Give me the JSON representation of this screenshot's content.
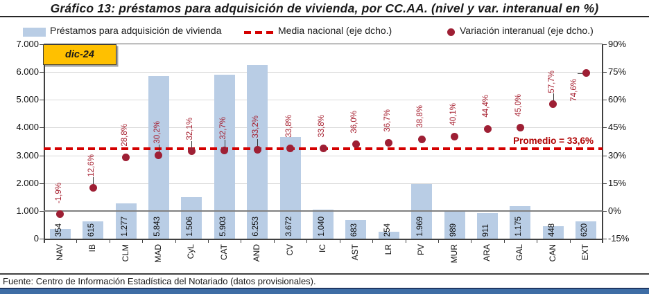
{
  "title": "Gráfico 13: préstamos para adquisición de vivienda, por CC.AA. (nivel y var. interanual en %)",
  "legend": {
    "bar_label": "Préstamos para adquisición de vivienda",
    "line_label": "Media nacional (eje dcho.)",
    "dot_label": "Variación interanual (eje dcho.)"
  },
  "footer": {
    "source": "Fuente: Centro de Información Estadística del Notariado (datos provisionales)."
  },
  "chart_data": {
    "type": "bar",
    "period_label": "dic-24",
    "categories": [
      "NAV",
      "IB",
      "CLM",
      "MAD",
      "CyL",
      "CAT",
      "AND",
      "CV",
      "IC",
      "AST",
      "LR",
      "PV",
      "MUR",
      "ARA",
      "GAL",
      "CAN",
      "EXT"
    ],
    "series": [
      {
        "name": "Préstamos para adquisición de vivienda",
        "type": "bar",
        "axis": "left",
        "values": [
          354,
          615,
          1277,
          5843,
          1506,
          5903,
          6253,
          3672,
          1040,
          683,
          254,
          1969,
          989,
          911,
          1175,
          448,
          620
        ],
        "value_labels": [
          "354",
          "615",
          "1.277",
          "5.843",
          "1.506",
          "5.903",
          "6.253",
          "3.672",
          "1.040",
          "683",
          "254",
          "1.969",
          "989",
          "911",
          "1.175",
          "448",
          "620"
        ]
      },
      {
        "name": "Variación interanual (eje dcho.)",
        "type": "scatter",
        "axis": "right",
        "values": [
          -1.9,
          12.6,
          28.8,
          30.2,
          32.1,
          32.7,
          33.2,
          33.8,
          33.8,
          36.0,
          36.7,
          38.8,
          40.1,
          44.4,
          45.0,
          57.7,
          74.6
        ],
        "value_labels": [
          "-1,9%",
          "12,6%",
          "28,8%",
          "30,2%",
          "32,1%",
          "32,7%",
          "33,2%",
          "33,8%",
          "33,8%",
          "36,0%",
          "36,7%",
          "38,8%",
          "40,1%",
          "44,4%",
          "45,0%",
          "57,7%",
          "74,6%"
        ]
      },
      {
        "name": "Media nacional (eje dcho.)",
        "type": "dashed-line",
        "axis": "right",
        "value": 33.6,
        "annotation": "Promedio = 33,6%"
      }
    ],
    "left_axis": {
      "min": 0,
      "max": 7000,
      "tick_labels": [
        "7.000",
        "6.000",
        "5.000",
        "4.000",
        "3.000",
        "2.000",
        "1.000",
        "0"
      ]
    },
    "right_axis": {
      "min": -15,
      "max": 90,
      "tick_labels": [
        "90%",
        "75%",
        "60%",
        "45%",
        "30%",
        "15%",
        "0%",
        "-15%"
      ]
    },
    "grid": true,
    "legend_position": "top",
    "colors": {
      "bar": "#B9CDE5",
      "dot": "#9E1F34",
      "dashed_line": "#D40000",
      "variation_label": "#A61E2E",
      "annotation": "#B00000",
      "period_box": "#FFC000",
      "bottom_band": "#3E6DA5"
    }
  }
}
